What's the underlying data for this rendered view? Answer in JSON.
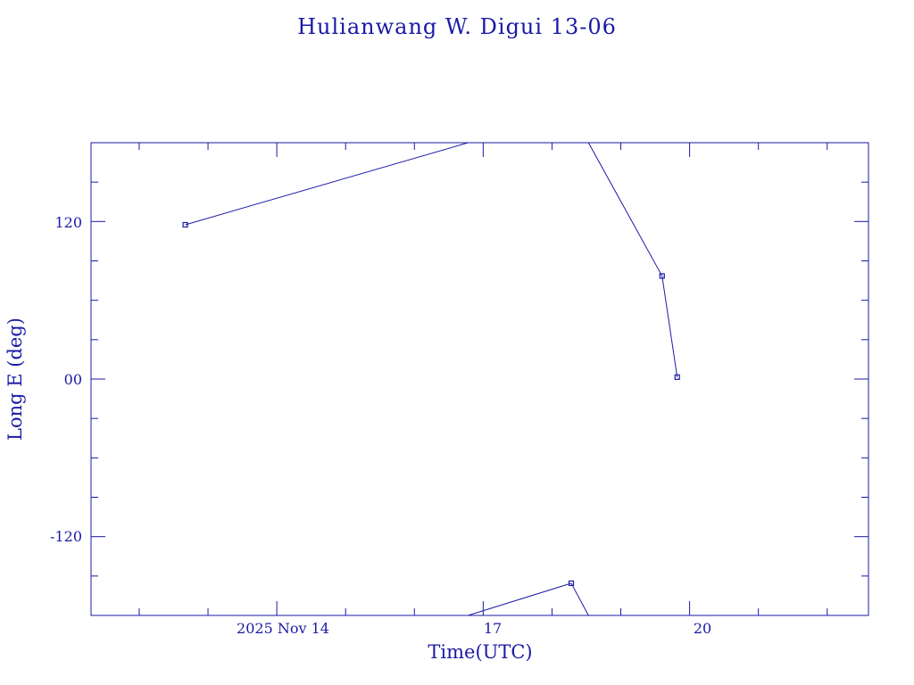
{
  "colors": {
    "ink": "#1a1aa6",
    "background": "#ffffff"
  },
  "chart_data": {
    "type": "line",
    "title": "Hulianwang W. Digui 13-06",
    "xlabel": "Time(UTC)",
    "ylabel": "Long E (deg)",
    "x_tick_labels": [
      "2025 Nov 14",
      "17",
      "20"
    ],
    "y_tick_labels": [
      "120",
      "00",
      "-120"
    ],
    "y_ticks": [
      120,
      0,
      -120
    ],
    "x_ticks_days": [
      14,
      17,
      20
    ],
    "xlim_days": [
      11.3,
      22.6
    ],
    "ylim": [
      -180,
      180
    ],
    "longitude_wraps": true,
    "points": [
      {
        "day": 12.67,
        "lon": 117.5,
        "marker": true
      },
      {
        "day": 19.6,
        "lon": 78.5,
        "marker": true
      },
      {
        "day": 19.82,
        "lon": 1.5,
        "marker": true
      }
    ],
    "segments": [
      [
        {
          "day": 12.67,
          "lon": 117.5
        },
        {
          "day": 16.78,
          "lon": 180
        }
      ],
      [
        {
          "day": 16.78,
          "lon": -180
        },
        {
          "day": 18.28,
          "lon": -155.5
        }
      ],
      [
        {
          "day": 18.28,
          "lon": -155.5
        },
        {
          "day": 18.53,
          "lon": -180
        }
      ],
      [
        {
          "day": 18.53,
          "lon": 180
        },
        {
          "day": 19.6,
          "lon": 78.5
        }
      ],
      [
        {
          "day": 19.6,
          "lon": 78.5
        },
        {
          "day": 19.82,
          "lon": 1.5
        }
      ]
    ],
    "extra_markers": [
      {
        "day": 18.28,
        "lon": -155.5
      }
    ]
  }
}
